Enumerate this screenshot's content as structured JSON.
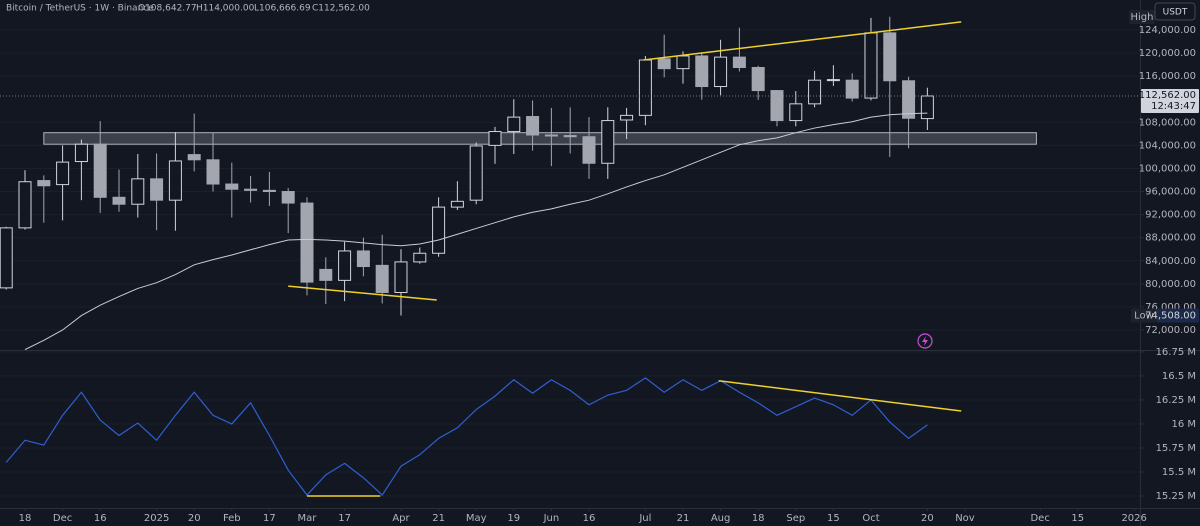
{
  "chart_data": [
    {
      "type": "candlestick",
      "title": "Bitcoin / TetherUS · 1W · Binance",
      "ohlc": [
        {
          "value": 108642.77,
          "label": "O108,642.77"
        },
        {
          "value": 114000,
          "label": "H114,000.00"
        },
        {
          "value": 106666.69,
          "label": "L106,666.69"
        },
        {
          "value": 112562,
          "label": "C112,562.00"
        }
      ],
      "currency": "USDT",
      "high_label": "High",
      "open": [
        79300,
        89700,
        97900,
        97200,
        101200,
        104200,
        95000,
        93800,
        98200,
        94500,
        102400,
        101500,
        97300,
        96400,
        96200,
        96000,
        94000,
        82500,
        80600,
        85700,
        83200,
        78500,
        83800,
        85300,
        93300,
        94500,
        104000,
        106400,
        109000,
        105800,
        105700,
        105500,
        100900,
        108400,
        109200,
        119000,
        117300,
        119500,
        114200,
        119300,
        117500,
        113500,
        108300,
        111200,
        115300,
        115300,
        112200,
        123500,
        115200,
        108642.77
      ],
      "high": [
        89900,
        99700,
        98800,
        104000,
        105000,
        108200,
        99800,
        102500,
        102600,
        106300,
        109500,
        106200,
        101000,
        98700,
        99400,
        96600,
        95000,
        84600,
        87300,
        88000,
        88500,
        86000,
        86300,
        95000,
        97800,
        104500,
        107200,
        112000,
        111800,
        110500,
        110600,
        108900,
        110600,
        110500,
        119500,
        123200,
        120300,
        120000,
        122300,
        124400,
        117800,
        113600,
        113400,
        116900,
        117900,
        116500,
        126100,
        126300,
        115900,
        114000
      ],
      "low": [
        79000,
        89400,
        90600,
        91000,
        94500,
        92300,
        92500,
        91500,
        89300,
        89200,
        99500,
        96000,
        91500,
        94100,
        93500,
        88800,
        78000,
        76500,
        77000,
        81300,
        76600,
        74508,
        83500,
        84700,
        92800,
        93800,
        100800,
        102500,
        103100,
        100400,
        102600,
        98200,
        98200,
        105100,
        107500,
        115800,
        114700,
        111900,
        112700,
        116800,
        111900,
        107300,
        107300,
        110600,
        114300,
        111600,
        111800,
        102000,
        103500,
        106666.69
      ],
      "close": [
        89700,
        97700,
        97000,
        101100,
        104200,
        95000,
        93800,
        98200,
        94500,
        101300,
        101500,
        97300,
        96400,
        96200,
        96000,
        94000,
        80300,
        80600,
        85700,
        83000,
        78500,
        83800,
        85300,
        93300,
        94300,
        103900,
        106400,
        108900,
        105800,
        105700,
        105500,
        100900,
        108300,
        109200,
        118800,
        117300,
        119500,
        114200,
        119300,
        117500,
        113500,
        108300,
        111200,
        115300,
        115400,
        112200,
        123500,
        115200,
        108700,
        112562
      ],
      "up_color": "#d1d4dc",
      "down_color": "#a3a6af",
      "overlay": {
        "color": "#c9ccd4",
        "values": [
          null,
          68600,
          70200,
          72000,
          74500,
          76300,
          77800,
          79200,
          80200,
          81600,
          83300,
          84200,
          85000,
          85900,
          86800,
          87600,
          87700,
          87600,
          87400,
          87100,
          86800,
          86600,
          86900,
          87600,
          88600,
          89600,
          90600,
          91600,
          92400,
          93000,
          93800,
          94500,
          95600,
          96800,
          97900,
          98900,
          100200,
          101500,
          102800,
          104100,
          104800,
          105300,
          106200,
          107000,
          107600,
          108100,
          108900,
          109300,
          109500,
          109600
        ]
      },
      "zone": {
        "x": [
          2,
          54.8
        ],
        "y": [
          104200,
          106200
        ],
        "color": "#d1d4dc"
      },
      "trendlines": [
        {
          "x": [
            33.9,
            50.8
          ],
          "y": [
            118800,
            125400
          ],
          "color": "#f0d12c"
        },
        {
          "x": [
            15,
            22.9
          ],
          "y": [
            79600,
            77200
          ],
          "color": "#f0d12c"
        }
      ],
      "price_tag": {
        "value": 112562,
        "label": "112,562.00",
        "countdown": "12:43:47"
      },
      "low_tag": {
        "label": "Low",
        "value": 74508,
        "value_label": "74,508.00"
      },
      "xlim": [
        -0.33,
        60.31
      ],
      "xticks": [
        {
          "value": 1,
          "label": "18"
        },
        {
          "value": 3,
          "label": "Dec"
        },
        {
          "value": 5,
          "label": "16"
        },
        {
          "value": 8,
          "label": "2025"
        },
        {
          "value": 10,
          "label": "20"
        },
        {
          "value": 12,
          "label": "Feb"
        },
        {
          "value": 14,
          "label": "17"
        },
        {
          "value": 16,
          "label": "Mar"
        },
        {
          "value": 18,
          "label": "17"
        },
        {
          "value": 21,
          "label": "Apr"
        },
        {
          "value": 23,
          "label": "21"
        },
        {
          "value": 25,
          "label": "May"
        },
        {
          "value": 27,
          "label": "19"
        },
        {
          "value": 29,
          "label": "Jun"
        },
        {
          "value": 31,
          "label": "16"
        },
        {
          "value": 34,
          "label": "Jul"
        },
        {
          "value": 36,
          "label": "21"
        },
        {
          "value": 38,
          "label": "Aug"
        },
        {
          "value": 40,
          "label": "18"
        },
        {
          "value": 42,
          "label": "Sep"
        },
        {
          "value": 44,
          "label": "15"
        },
        {
          "value": 46,
          "label": "Oct"
        },
        {
          "value": 49,
          "label": "20"
        },
        {
          "value": 51,
          "label": "Nov"
        },
        {
          "value": 55,
          "label": "Dec"
        },
        {
          "value": 57,
          "label": "15"
        },
        {
          "value": 60,
          "label": "2026"
        }
      ],
      "ylim": [
        68530,
        129200
      ],
      "yticks": [
        {
          "value": 72000,
          "label": "72,000.00"
        },
        {
          "value": 76000,
          "label": "76,000.00"
        },
        {
          "value": 80000,
          "label": "80,000.00"
        },
        {
          "value": 84000,
          "label": "84,000.00"
        },
        {
          "value": 88000,
          "label": "88,000.00"
        },
        {
          "value": 92000,
          "label": "92,000.00"
        },
        {
          "value": 96000,
          "label": "96,000.00"
        },
        {
          "value": 100000,
          "label": "100,000.00"
        },
        {
          "value": 104000,
          "label": "104,000.00"
        },
        {
          "value": 108000,
          "label": "108,000.00"
        },
        {
          "value": 116000,
          "label": "116,000.00"
        },
        {
          "value": 120000,
          "label": "120,000.00"
        },
        {
          "value": 124000,
          "label": "124,000.00"
        }
      ],
      "grid": true
    },
    {
      "type": "line",
      "series": [
        {
          "color": "#2f5fd0",
          "values": [
            15.6,
            15.83,
            15.78,
            16.09,
            16.33,
            16.04,
            15.88,
            16.01,
            15.83,
            16.09,
            16.33,
            16.09,
            16.0,
            16.22,
            15.88,
            15.52,
            15.26,
            15.47,
            15.59,
            15.44,
            15.26,
            15.56,
            15.68,
            15.85,
            15.96,
            16.15,
            16.29,
            16.46,
            16.32,
            16.46,
            16.35,
            16.2,
            16.3,
            16.35,
            16.48,
            16.33,
            16.46,
            16.35,
            16.45,
            16.33,
            16.22,
            16.09,
            16.18,
            16.27,
            16.2,
            16.09,
            16.25,
            16.02,
            15.85,
            15.99
          ]
        }
      ],
      "trendlines": [
        {
          "x": [
            37.9,
            50.8
          ],
          "y": [
            16.45,
            16.135
          ],
          "color": "#f0d12c"
        },
        {
          "x": [
            16,
            19.9
          ],
          "y": [
            15.25,
            15.25
          ],
          "color": "#f0d12c"
        }
      ],
      "ylim": [
        15.125,
        16.77
      ],
      "yticks": [
        {
          "value": 15.25,
          "label": "15.25 M"
        },
        {
          "value": 15.5,
          "label": "15.5 M"
        },
        {
          "value": 15.75,
          "label": "15.75 M"
        },
        {
          "value": 16,
          "label": "16 M"
        },
        {
          "value": 16.25,
          "label": "16.25 M"
        },
        {
          "value": 16.5,
          "label": "16.5 M"
        },
        {
          "value": 16.75,
          "label": "16.75 M"
        }
      ],
      "grid": true
    }
  ]
}
